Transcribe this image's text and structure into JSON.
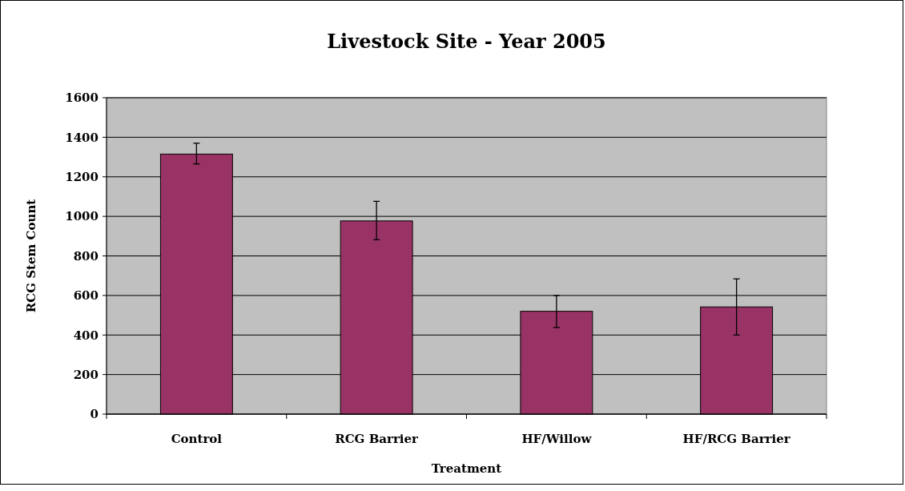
{
  "chart_data": {
    "type": "bar",
    "title": "Livestock Site - Year 2005",
    "xlabel": "Treatment",
    "ylabel": "RCG Stem Count",
    "categories": [
      "Control",
      "RCG Barrier",
      "HF/Willow",
      "HF/RCG Barrier"
    ],
    "values": [
      1315,
      977,
      520,
      542
    ],
    "color": "#993366",
    "errors": [
      [
        1265,
        1370
      ],
      [
        882,
        1076
      ],
      [
        438,
        600
      ],
      [
        400,
        684
      ]
    ],
    "ylim": [
      0,
      1600
    ],
    "yticks": [
      0,
      200,
      400,
      600,
      800,
      1000,
      1200,
      1400,
      1600
    ],
    "grid": "y"
  }
}
